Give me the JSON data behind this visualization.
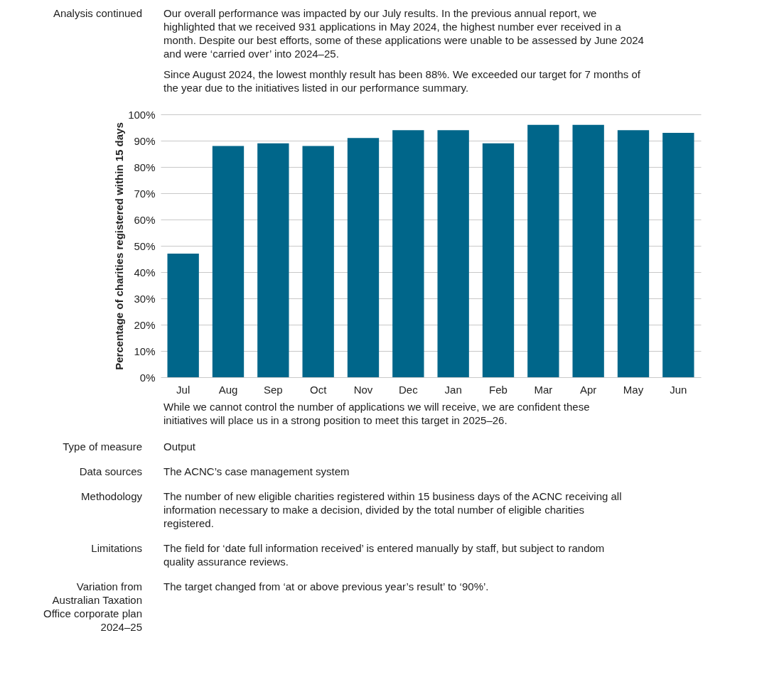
{
  "chart_data": {
    "type": "bar",
    "ylabel": "Percentage of charities registered within 15 days",
    "categories": [
      "Jul",
      "Aug",
      "Sep",
      "Oct",
      "Nov",
      "Dec",
      "Jan",
      "Feb",
      "Mar",
      "Apr",
      "May",
      "Jun"
    ],
    "values": [
      47,
      88,
      89,
      88,
      91,
      94,
      94,
      89,
      96,
      96,
      94,
      93
    ],
    "color": "#00668a",
    "ylim": [
      0,
      100
    ],
    "yticks": [
      {
        "value": 0,
        "label": "0%"
      },
      {
        "value": 10,
        "label": "10%"
      },
      {
        "value": 20,
        "label": "20%"
      },
      {
        "value": 30,
        "label": "30%"
      },
      {
        "value": 40,
        "label": "40%"
      },
      {
        "value": 50,
        "label": "50%"
      },
      {
        "value": 60,
        "label": "60%"
      },
      {
        "value": 70,
        "label": "70%"
      },
      {
        "value": 80,
        "label": "80%"
      },
      {
        "value": 90,
        "label": "90%"
      },
      {
        "value": 100,
        "label": "100%"
      }
    ],
    "grid": "y",
    "annotations": [
      "Analysis continued",
      "Our overall performance was impacted by our July results. In the previous annual report, we highlighted that we received 931 applications in May 2024, the highest number ever received in a month. Despite our best efforts, some of these applications were unable to be assessed by June 2024 and were ‘carried over’ into 2024–25.",
      "Since August 2024, the lowest monthly result has been 88%. We exceeded our target for 7 months of the year due to the initiatives listed in our performance summary.",
      "While we cannot control the number of applications we will receive, we are confident these initiatives will place us in a strong position to meet this target in 2025–26.",
      "Type of measure",
      "Output",
      "Data sources",
      "The ACNC’s case management system",
      "Methodology",
      "The number of new eligible charities registered within 15 business days of the ACNC receiving all information necessary to make a decision, divided by the total number of eligible charities registered.",
      "Limitations",
      "The field for ‘date full information received’ is entered manually by staff, but subject to random quality assurance reviews.",
      "Variation from Australian Taxation Office corporate plan 2024–25",
      "The target changed from ‘at or above previous year’s result’ to ‘90%’."
    ]
  }
}
